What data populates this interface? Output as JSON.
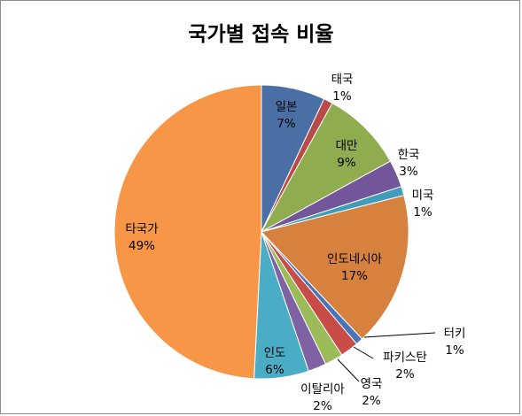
{
  "chart_data": {
    "type": "pie",
    "title": "국가별 접속 비율",
    "slices": [
      {
        "label": "일본",
        "value": 7,
        "value_label": "7%",
        "color": "#4a6fa5"
      },
      {
        "label": "태국",
        "value": 1,
        "value_label": "1%",
        "color": "#b84a47"
      },
      {
        "label": "대만",
        "value": 9,
        "value_label": "9%",
        "color": "#8fac4f"
      },
      {
        "label": "한국",
        "value": 3,
        "value_label": "3%",
        "color": "#73569a"
      },
      {
        "label": "미국",
        "value": 1,
        "value_label": "1%",
        "color": "#3f9cba"
      },
      {
        "label": "인도네시아",
        "value": 17,
        "value_label": "17%",
        "color": "#d6813e"
      },
      {
        "label": "터키",
        "value": 0.8,
        "value_label": "1%",
        "color": "#4a74b8"
      },
      {
        "label": "파키스탄",
        "value": 2,
        "value_label": "2%",
        "color": "#c84c47"
      },
      {
        "label": "영국",
        "value": 2,
        "value_label": "2%",
        "color": "#9bbb59"
      },
      {
        "label": "이탈리아",
        "value": 2,
        "value_label": "2%",
        "color": "#7e62a3"
      },
      {
        "label": "인도",
        "value": 6,
        "value_label": "6%",
        "color": "#4bacc6"
      },
      {
        "label": "타국가",
        "value": 49.2,
        "value_label": "49%",
        "color": "#f79646"
      }
    ],
    "legend": "none"
  }
}
